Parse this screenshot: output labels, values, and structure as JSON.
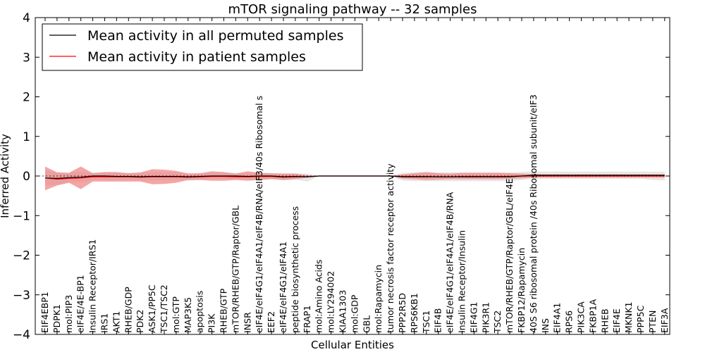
{
  "chart_data": {
    "type": "line",
    "title": "mTOR signaling pathway -- 32 samples",
    "xlabel": "Cellular Entities",
    "ylabel": "Inferred Activity",
    "ylim": [
      -4,
      4
    ],
    "yticks": [
      -4,
      -3,
      -2,
      -1,
      0,
      1,
      2,
      3,
      4
    ],
    "ytick_labels": [
      "−4",
      "−3",
      "−2",
      "−1",
      "0",
      "1",
      "2",
      "3",
      "4"
    ],
    "grid": false,
    "legend_position": "top-left",
    "categories": [
      "EIF4EBP1",
      "PDPK1",
      "mol:PIP3",
      "eIF4E/4E-BP1",
      "Insulin Receptor/IRS1",
      "IRS1",
      "AKT1",
      "RHEB/GDP",
      "PDK2",
      "ASK1/PP5C",
      "TSC1/TSC2",
      "mol:GTP",
      "MAP3K5",
      "apoptosis",
      "PI3K",
      "RHEB/GTP",
      "mTOR/RHEB/GTP/Raptor/GBL",
      "INSR",
      "eIF4E/eIF4G1/eIF4A1/eIF4B/RNA/eIF3/40s Ribosomal s",
      "EEF2",
      "eIF4E/eIF4G1/eIF4A1",
      "peptide biosynthetic process",
      "FRAP1",
      "mol:Amino Acids",
      "mol:LY294002",
      "KIAA1303",
      "mol:GDP",
      "GBL",
      "mol:Rapamycin",
      "tumor necrosis factor receptor activity",
      "PPP2R5D",
      "RPS6KB1",
      "TSC1",
      "EIF4B",
      "eIF4E/eIF4G1/eIF4A1/eIF4B/RNA",
      "Insulin Receptor/Insulin",
      "EIF4G1",
      "PIK3R1",
      "TSC2",
      "mTOR/RHEB/GTP/Raptor/GBL/eIF4E",
      "FKBP12/Rapamycin",
      "40S S6 ribosomal protein /40s Ribosomal subunit/eIF3",
      "INS",
      "EIF4A1",
      "RPS6",
      "PIK3CA",
      "FKBP1A",
      "RHEB",
      "EIF4E",
      "MKNK1",
      "PPP5C",
      "PTEN",
      "EIF3A"
    ],
    "series": [
      {
        "name": "Mean activity in all permuted samples",
        "color": "#000000",
        "band_color": "#dddddd",
        "mean": [
          -0.05,
          -0.06,
          -0.04,
          -0.03,
          0.0,
          0.0,
          -0.01,
          -0.01,
          -0.02,
          -0.01,
          -0.01,
          -0.01,
          -0.02,
          -0.01,
          0.0,
          0.0,
          0.0,
          -0.01,
          0.0,
          0.0,
          -0.02,
          -0.01,
          -0.02,
          0.0,
          0.0,
          0.0,
          0.0,
          0.0,
          0.0,
          0.0,
          -0.02,
          -0.02,
          -0.02,
          -0.02,
          -0.02,
          -0.02,
          -0.02,
          -0.02,
          -0.02,
          -0.02,
          0.0,
          0.02,
          0.02,
          0.02,
          0.02,
          0.02,
          0.02,
          0.02,
          0.02,
          0.02,
          0.02,
          0.02,
          0.02
        ],
        "upper": [
          0.14,
          0.1,
          0.08,
          0.1,
          0.09,
          0.09,
          0.08,
          0.08,
          0.08,
          0.09,
          0.09,
          0.08,
          0.08,
          0.07,
          0.07,
          0.08,
          0.08,
          0.07,
          0.07,
          0.07,
          0.07,
          0.07,
          0.06,
          0.0,
          0.0,
          0.0,
          0.0,
          0.0,
          0.0,
          0.0,
          0.08,
          0.09,
          0.09,
          0.09,
          0.09,
          0.09,
          0.09,
          0.09,
          0.09,
          0.09,
          0.1,
          0.11,
          0.11,
          0.11,
          0.11,
          0.11,
          0.11,
          0.11,
          0.11,
          0.11,
          0.11,
          0.11,
          0.11
        ],
        "lower": [
          -0.24,
          -0.22,
          -0.16,
          -0.16,
          -0.09,
          -0.09,
          -0.1,
          -0.1,
          -0.11,
          -0.11,
          -0.11,
          -0.1,
          -0.12,
          -0.1,
          -0.07,
          -0.08,
          -0.08,
          -0.09,
          -0.07,
          -0.07,
          -0.11,
          -0.09,
          -0.14,
          0.0,
          0.0,
          0.0,
          0.0,
          0.0,
          0.0,
          0.0,
          -0.12,
          -0.13,
          -0.13,
          -0.13,
          -0.13,
          -0.13,
          -0.13,
          -0.13,
          -0.13,
          -0.13,
          -0.1,
          -0.07,
          -0.07,
          -0.07,
          -0.07,
          -0.07,
          -0.07,
          -0.07,
          -0.07,
          -0.07,
          -0.07,
          -0.1,
          -0.11
        ]
      },
      {
        "name": "Mean activity in patient samples",
        "color": "#ff0000",
        "band_color": "#f08080",
        "mean": [
          -0.05,
          -0.08,
          -0.06,
          -0.05,
          -0.02,
          -0.02,
          -0.02,
          -0.02,
          -0.03,
          -0.02,
          -0.02,
          -0.02,
          -0.03,
          -0.02,
          -0.01,
          -0.01,
          -0.02,
          -0.02,
          -0.01,
          -0.01,
          -0.03,
          -0.02,
          -0.02,
          0.0,
          0.0,
          0.0,
          0.0,
          0.0,
          0.0,
          0.0,
          -0.01,
          -0.01,
          -0.01,
          -0.02,
          -0.02,
          -0.01,
          -0.01,
          -0.01,
          -0.01,
          -0.01,
          0.0,
          0.0,
          0.0,
          0.0,
          0.0,
          0.0,
          0.0,
          0.0,
          0.0,
          0.0,
          0.0,
          0.0,
          0.0
        ],
        "upper": [
          0.24,
          0.09,
          0.08,
          0.24,
          0.07,
          0.1,
          0.1,
          0.07,
          0.09,
          0.17,
          0.16,
          0.13,
          0.06,
          0.07,
          0.12,
          0.1,
          0.06,
          0.12,
          0.08,
          0.07,
          0.06,
          0.06,
          0.02,
          0.0,
          0.0,
          0.0,
          0.0,
          0.0,
          0.0,
          0.0,
          0.04,
          0.07,
          0.1,
          0.07,
          0.06,
          0.08,
          0.08,
          0.08,
          0.08,
          0.07,
          0.06,
          0.05,
          0.04,
          0.04,
          0.04,
          0.04,
          0.04,
          0.04,
          0.04,
          0.04,
          0.04,
          0.04,
          0.04
        ],
        "lower": [
          -0.36,
          -0.24,
          -0.17,
          -0.33,
          -0.14,
          -0.14,
          -0.14,
          -0.14,
          -0.14,
          -0.21,
          -0.2,
          -0.17,
          -0.1,
          -0.1,
          -0.12,
          -0.12,
          -0.1,
          -0.12,
          -0.1,
          -0.08,
          -0.1,
          -0.08,
          -0.04,
          0.0,
          0.0,
          0.0,
          0.0,
          0.0,
          0.0,
          0.0,
          -0.07,
          -0.08,
          -0.1,
          -0.09,
          -0.08,
          -0.08,
          -0.08,
          -0.08,
          -0.08,
          -0.07,
          -0.06,
          -0.04,
          -0.04,
          -0.04,
          -0.04,
          -0.04,
          -0.04,
          -0.04,
          -0.04,
          -0.04,
          -0.04,
          -0.04,
          -0.04
        ]
      }
    ]
  }
}
